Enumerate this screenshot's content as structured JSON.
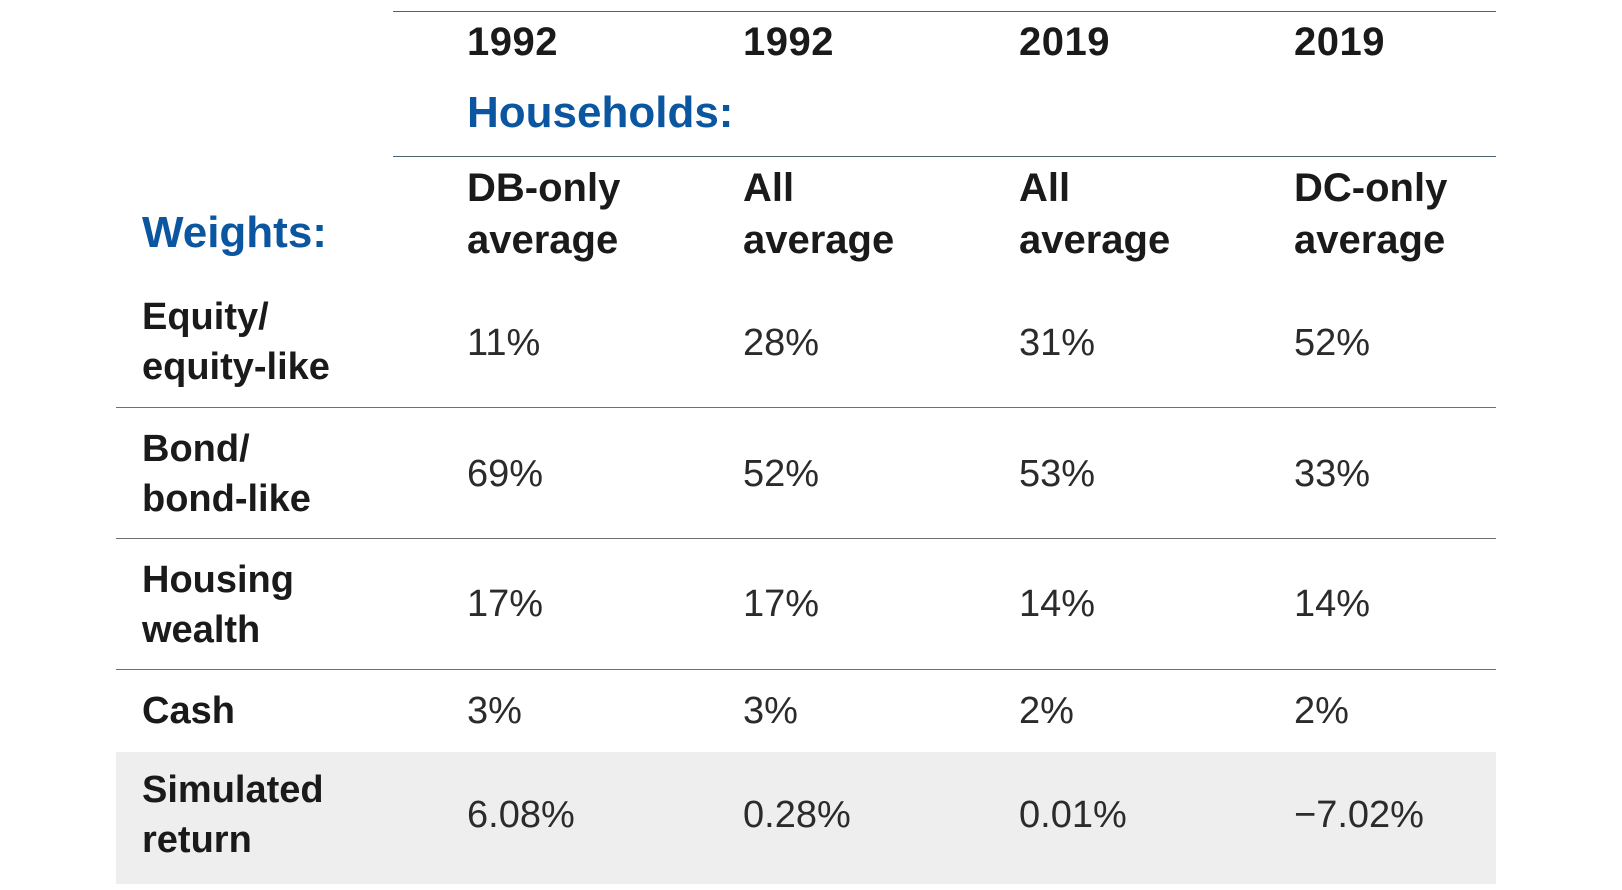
{
  "table": {
    "years": [
      "1992",
      "1992",
      "2019",
      "2019"
    ],
    "households_label": "Households:",
    "weights_label": "Weights:",
    "columns": [
      [
        "DB-only",
        "average"
      ],
      [
        "All",
        "average"
      ],
      [
        "All",
        "average"
      ],
      [
        "DC-only",
        "average"
      ]
    ],
    "rows": [
      {
        "label": [
          "Equity/",
          "equity-like"
        ],
        "values": [
          "11%",
          "28%",
          "31%",
          "52%"
        ]
      },
      {
        "label": [
          "Bond/",
          "bond-like"
        ],
        "values": [
          "69%",
          "52%",
          "53%",
          "33%"
        ]
      },
      {
        "label": [
          "Housing",
          "wealth"
        ],
        "values": [
          "17%",
          "17%",
          "14%",
          "14%"
        ]
      },
      {
        "label": [
          "Cash"
        ],
        "values": [
          "3%",
          "3%",
          "2%",
          "2%"
        ]
      },
      {
        "label": [
          "Simulated",
          "return"
        ],
        "values": [
          "6.08%",
          "0.28%",
          "0.01%",
          "−7.02%"
        ]
      }
    ]
  },
  "colors": {
    "accent_blue": "#0b56a0",
    "text": "#1a1a1a",
    "highlight_row": "#eeeeee",
    "rule": "#4a6470"
  }
}
